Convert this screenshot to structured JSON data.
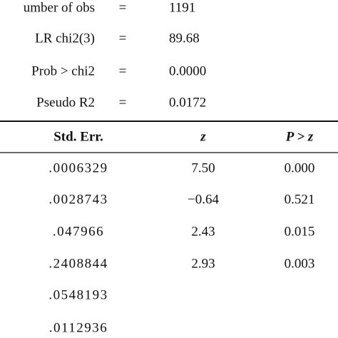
{
  "summary": [
    {
      "label": "umber of obs",
      "sign": "=",
      "value": "1191"
    },
    {
      "label": "LR chi2(3)",
      "sign": "=",
      "value": "89.68"
    },
    {
      "label": "Prob > chi2",
      "sign": "=",
      "value": "0.0000"
    },
    {
      "label": "Pseudo R2",
      "sign": "=",
      "value": "0.0172"
    }
  ],
  "table": {
    "header": [
      "Std. Err.",
      "z",
      "P > z"
    ],
    "rows": [
      [
        ".0006329",
        "7.50",
        "0.000"
      ],
      [
        ".0028743",
        "−0.64",
        "0.521"
      ],
      [
        ".047966",
        "2.43",
        "0.015"
      ],
      [
        ".2408844",
        "2.93",
        "0.003"
      ],
      [
        ".0548193"
      ],
      [
        ".0112936"
      ]
    ]
  }
}
